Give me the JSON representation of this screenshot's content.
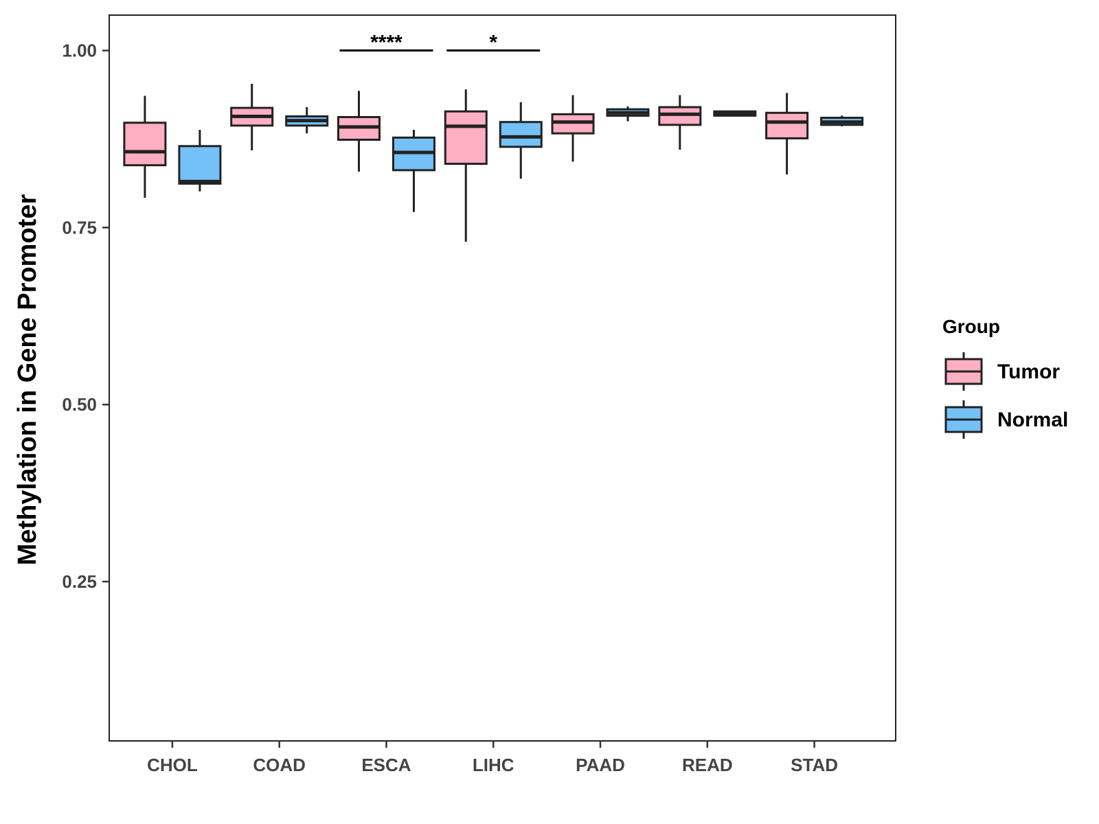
{
  "chart_data": {
    "type": "boxplot",
    "title": "",
    "xlabel": "",
    "ylabel": "Methylation in Gene Promoter",
    "ylim": [
      0.025,
      1.05
    ],
    "yticks": [
      0.25,
      0.5,
      0.75,
      1.0
    ],
    "ytick_labels": [
      "0.25",
      "0.50",
      "0.75",
      "1.00"
    ],
    "categories": [
      "CHOL",
      "COAD",
      "ESCA",
      "LIHC",
      "PAAD",
      "READ",
      "STAD"
    ],
    "grid": false,
    "legend": {
      "title": "Group",
      "position": "right",
      "entries": [
        "Tumor",
        "Normal"
      ]
    },
    "series": [
      {
        "name": "Tumor",
        "color": "#ffafc1",
        "boxes": [
          {
            "min": 0.792,
            "q1": 0.838,
            "median": 0.857,
            "q3": 0.898,
            "max": 0.936
          },
          {
            "min": 0.859,
            "q1": 0.894,
            "median": 0.907,
            "q3": 0.919,
            "max": 0.953
          },
          {
            "min": 0.829,
            "q1": 0.874,
            "median": 0.892,
            "q3": 0.906,
            "max": 0.943
          },
          {
            "min": 0.73,
            "q1": 0.84,
            "median": 0.893,
            "q3": 0.914,
            "max": 0.945
          },
          {
            "min": 0.843,
            "q1": 0.883,
            "median": 0.899,
            "q3": 0.91,
            "max": 0.937
          },
          {
            "min": 0.86,
            "q1": 0.895,
            "median": 0.91,
            "q3": 0.92,
            "max": 0.937
          },
          {
            "min": 0.825,
            "q1": 0.876,
            "median": 0.899,
            "q3": 0.912,
            "max": 0.94
          }
        ]
      },
      {
        "name": "Normal",
        "color": "#74c1f8",
        "boxes": [
          {
            "min": 0.801,
            "q1": 0.812,
            "median": 0.815,
            "q3": 0.865,
            "max": 0.888
          },
          {
            "min": 0.883,
            "q1": 0.894,
            "median": 0.901,
            "q3": 0.907,
            "max": 0.92
          },
          {
            "min": 0.772,
            "q1": 0.831,
            "median": 0.856,
            "q3": 0.877,
            "max": 0.888
          },
          {
            "min": 0.819,
            "q1": 0.864,
            "median": 0.878,
            "q3": 0.899,
            "max": 0.927
          },
          {
            "min": 0.9,
            "q1": 0.908,
            "median": 0.912,
            "q3": 0.917,
            "max": 0.921
          },
          {
            "min": 0.907,
            "q1": 0.908,
            "median": 0.911,
            "q3": 0.914,
            "max": 0.915
          },
          {
            "min": 0.893,
            "q1": 0.895,
            "median": 0.899,
            "q3": 0.905,
            "max": 0.908
          }
        ]
      }
    ],
    "annotations": [
      {
        "category": "ESCA",
        "y": 1.0,
        "label": "****"
      },
      {
        "category": "LIHC",
        "y": 1.0,
        "label": "*"
      }
    ]
  }
}
